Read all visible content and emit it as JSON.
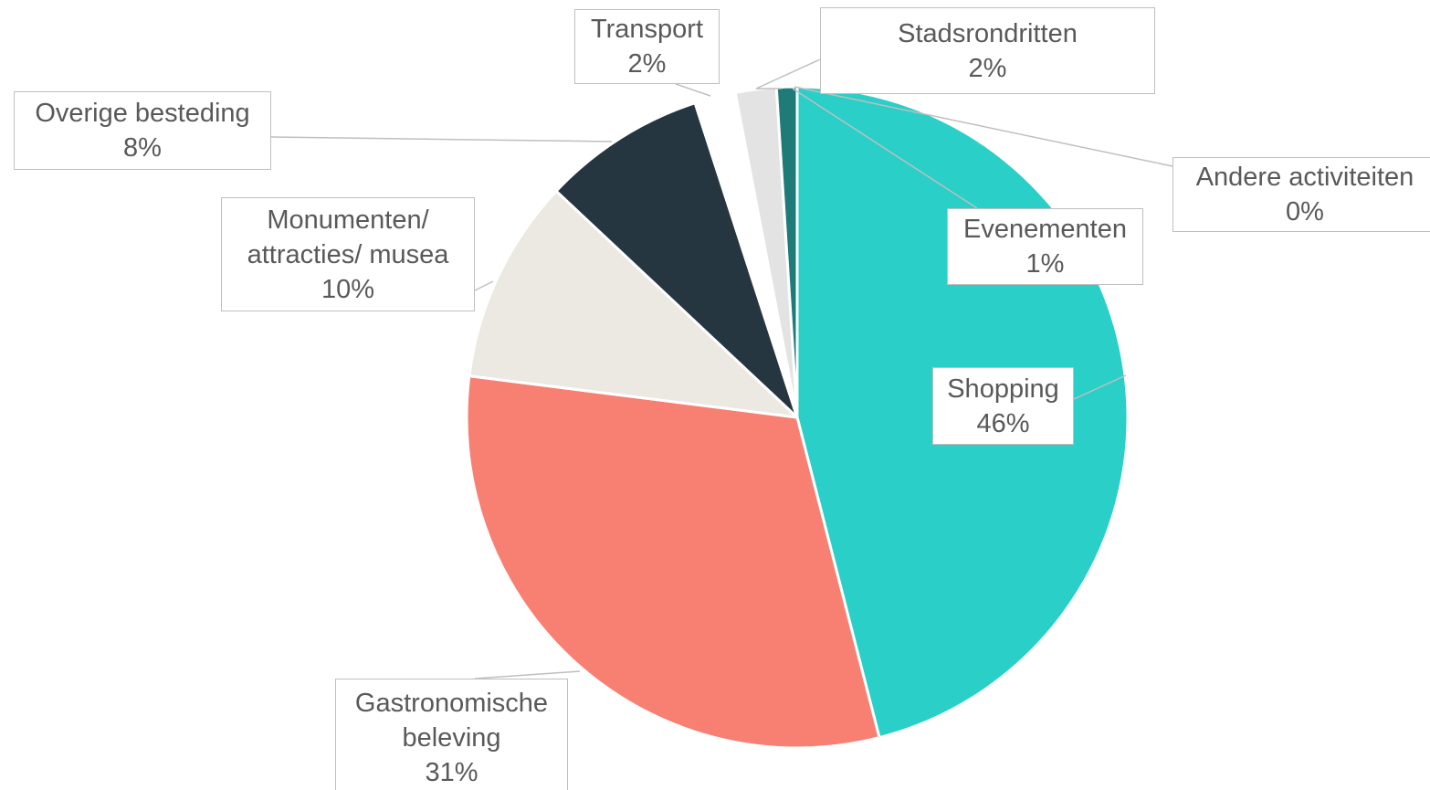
{
  "chart_data": {
    "type": "pie",
    "categories": [
      "Shopping",
      "Gastronomische beleving",
      "Monumenten/ attracties/ musea",
      "Overige besteding",
      "Transport",
      "Stadsrondritten",
      "Evenementen",
      "Andere activiteiten"
    ],
    "values": [
      46,
      31,
      10,
      8,
      2,
      2,
      1,
      0
    ],
    "value_labels": [
      "46%",
      "31%",
      "10%",
      "8%",
      "2%",
      "2%",
      "1%",
      "0%"
    ],
    "colors": [
      "#2acfc8",
      "#f78073",
      "#ece8e2",
      "#263640",
      "#ffffff",
      "#e3e3e3",
      "#1e7b78",
      "#c0392b"
    ]
  }
}
